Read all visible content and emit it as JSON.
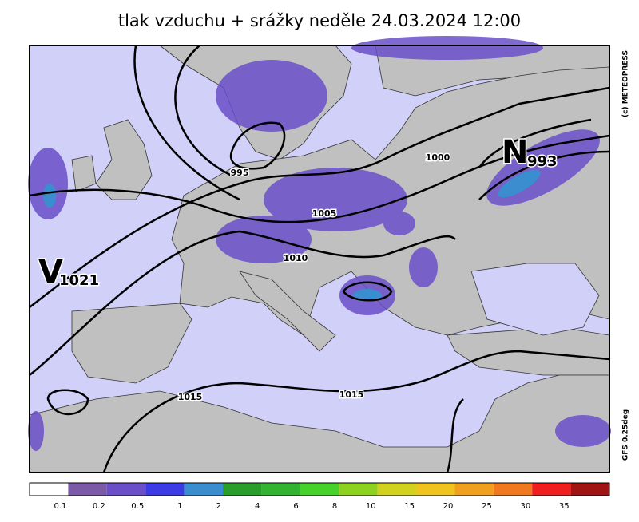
{
  "header": {
    "title": "tlak vzduchu + srážky  neděle 24.03.2024 12:00"
  },
  "side": {
    "copyright": "(c) METEOPRESS",
    "model": "GFS 0.25deg"
  },
  "centers": [
    {
      "letter": "V",
      "value": "1021"
    },
    {
      "letter": "N",
      "value": "993"
    }
  ],
  "isobar_labels": [
    "995",
    "1000",
    "1005",
    "1010",
    "1015",
    "1015"
  ],
  "legend": {
    "items": [
      {
        "color": "#ffffff"
      },
      {
        "color": "#7b5aa8",
        "label": "0.1"
      },
      {
        "color": "#6a4fc8",
        "label": "0.2"
      },
      {
        "color": "#3c3ce6",
        "label": "0.5"
      },
      {
        "color": "#3a8ed0",
        "label": "1"
      },
      {
        "color": "#2a9e2a",
        "label": "2"
      },
      {
        "color": "#32b432",
        "label": "4"
      },
      {
        "color": "#46d22a",
        "label": "6"
      },
      {
        "color": "#8cd21e",
        "label": "8"
      },
      {
        "color": "#d2d21e",
        "label": "10"
      },
      {
        "color": "#f0c31e",
        "label": "15"
      },
      {
        "color": "#f0a01e",
        "label": "20"
      },
      {
        "color": "#f0781e",
        "label": "25"
      },
      {
        "color": "#f01e1e",
        "label": "30"
      },
      {
        "color": "#a01414",
        "label": "35"
      }
    ]
  }
}
